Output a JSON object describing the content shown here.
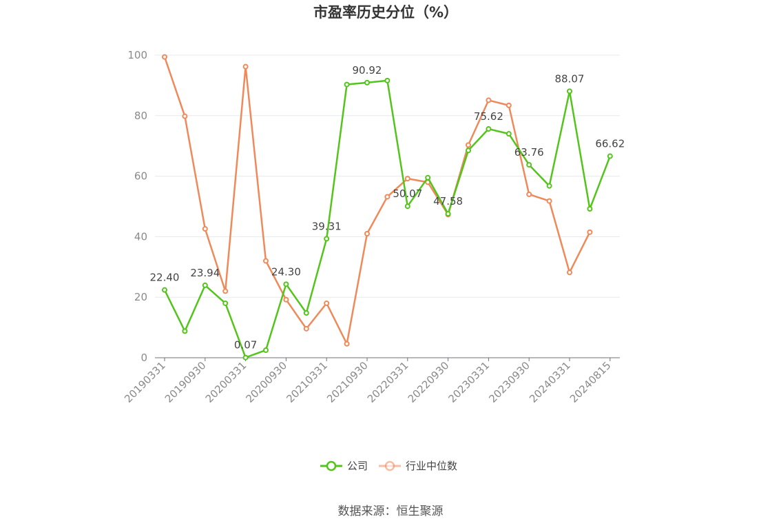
{
  "chart_data": {
    "type": "line",
    "title": "市盈率历史分位（%）",
    "ylim": [
      0,
      100
    ],
    "yticks": [
      0,
      20,
      40,
      60,
      80,
      100
    ],
    "grid": true,
    "legend_position": "bottom-center",
    "x_tick_labels": [
      "20190331",
      "20190930",
      "20200331",
      "20200930",
      "20210331",
      "20210930",
      "20220331",
      "20220930",
      "20230331",
      "20230930",
      "20240331",
      "20240815"
    ],
    "x_tick_positions": [
      0,
      2,
      4,
      6,
      8,
      10,
      12,
      14,
      16,
      18,
      20,
      22
    ],
    "x_count": 23,
    "series": [
      {
        "name": "公司",
        "color": "#52c41a",
        "values": [
          22.4,
          8.8,
          23.94,
          18.0,
          0.07,
          2.5,
          24.3,
          14.8,
          39.31,
          90.3,
          90.92,
          91.6,
          50.07,
          59.5,
          47.58,
          68.5,
          75.62,
          74.0,
          63.76,
          56.8,
          88.07,
          49.2,
          66.62
        ],
        "labels": {
          "0": "22.40",
          "2": "23.94",
          "4": "0.07",
          "6": "24.30",
          "8": "39.31",
          "10": "90.92",
          "12": "50.07",
          "14": "47.58",
          "16": "75.62",
          "18": "63.76",
          "20": "88.07",
          "22": "66.62"
        }
      },
      {
        "name": "行业中位数",
        "color": "#f0895a",
        "values": [
          99.4,
          79.8,
          42.6,
          22.0,
          96.2,
          32.0,
          19.2,
          9.6,
          18.0,
          4.6,
          41.0,
          53.2,
          59.2,
          58.0,
          47.3,
          70.3,
          85.1,
          83.4,
          54.0,
          51.8,
          28.2,
          41.5,
          null
        ]
      }
    ]
  },
  "source_text": "数据来源：恒生聚源"
}
